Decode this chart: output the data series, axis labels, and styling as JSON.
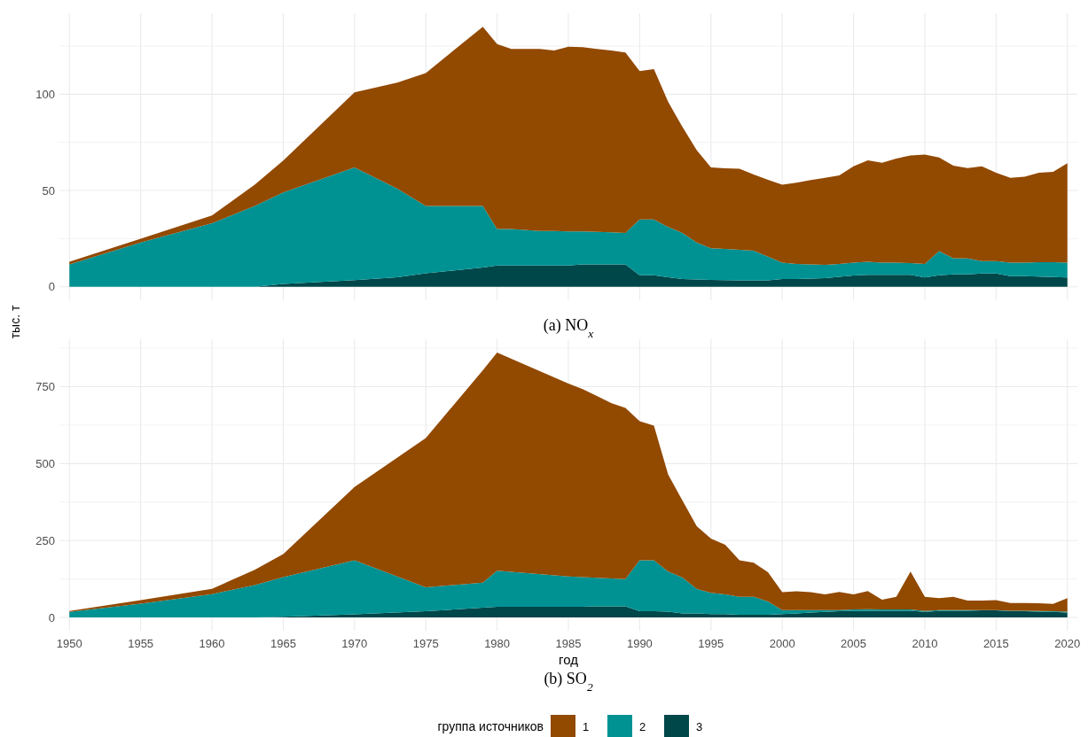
{
  "chart_data": [
    {
      "type": "area",
      "title": "(a) NO$_{x}$",
      "ylabel": "тыс. т",
      "stacked": true,
      "grid": true,
      "tick_labels": "y",
      "x": [
        1950,
        1955,
        1960,
        1963,
        1965,
        1970,
        1973,
        1975,
        1979,
        1980,
        1981,
        1983,
        1984,
        1985,
        1986,
        1987,
        1988,
        1989,
        1990,
        1991,
        1992,
        1993,
        1994,
        1995,
        1996,
        1997,
        1998,
        1999,
        2000,
        2001,
        2002,
        2003,
        2004,
        2005,
        2006,
        2007,
        2008,
        2009,
        2010,
        2011,
        2012,
        2013,
        2014,
        2015,
        2016,
        2017,
        2018,
        2019,
        2020
      ],
      "xlim": [
        1949.3,
        2020.7
      ],
      "xticks": [
        1950,
        1955,
        1960,
        1965,
        1970,
        1975,
        1980,
        1985,
        1990,
        1995,
        2000,
        2005,
        2010,
        2015,
        2020
      ],
      "ylim": [
        -7,
        142
      ],
      "yticks": [
        0,
        {
          "value": 25,
          "label": null
        },
        50,
        {
          "value": 75,
          "label": null
        },
        100,
        {
          "value": 125,
          "label": null
        }
      ],
      "series": [
        {
          "color": "#00474a",
          "values": [
            0,
            0,
            0,
            0,
            1.5,
            3.5,
            5,
            7,
            10,
            11,
            11,
            11,
            11,
            11,
            11.6,
            11.6,
            11.6,
            11.6,
            6,
            6,
            5,
            4,
            3.8,
            3.6,
            3.5,
            3.4,
            3.4,
            3.4,
            4,
            4,
            4.3,
            4.5,
            5.2,
            5.9,
            6.2,
            6.2,
            6.2,
            6.2,
            4.8,
            6,
            6.4,
            6.4,
            6.9,
            6.9,
            5.5,
            5.5,
            5.3,
            5.1,
            4.8
          ]
        },
        {
          "color": "#009292",
          "values": [
            11.6,
            23,
            33,
            42,
            47.5,
            58.5,
            46,
            35,
            32,
            19,
            19,
            18,
            18,
            17.7,
            17.1,
            16.9,
            16.7,
            16.4,
            29,
            29,
            26,
            24,
            19.2,
            16.4,
            16.2,
            15.8,
            15.3,
            12.2,
            8.5,
            7.8,
            7.3,
            6.9,
            6.6,
            6.6,
            6.8,
            6.4,
            6.3,
            6.1,
            7,
            12.5,
            8.5,
            8.3,
            6.4,
            6.4,
            7.1,
            7.1,
            7.5,
            7.7,
            7.7
          ]
        },
        {
          "color": "#924900",
          "values": [
            1.4,
            2,
            4,
            11,
            16.6,
            39,
            55,
            69,
            93,
            96,
            93.5,
            94.5,
            93.7,
            95.9,
            95.7,
            95,
            94.4,
            93.6,
            77,
            78,
            65,
            55,
            48,
            42,
            41.8,
            42.1,
            39.6,
            39.9,
            40.5,
            42.2,
            43.8,
            45.2,
            46,
            50.1,
            52.7,
            51.8,
            54.1,
            55.9,
            56.9,
            48.6,
            48,
            46.9,
            49.2,
            45.9,
            44,
            44.5,
            46.4,
            46.9,
            51.7
          ]
        }
      ]
    },
    {
      "type": "area",
      "title": "(b) SO$_{2}$",
      "xlabel": "год",
      "stacked": true,
      "grid": true,
      "legend": "bottom",
      "legend_title": "группа источников",
      "x": [
        1950,
        1955,
        1960,
        1963,
        1965,
        1970,
        1975,
        1979,
        1980,
        1985,
        1986,
        1987,
        1988,
        1989,
        1990,
        1991,
        1992,
        1993,
        1994,
        1995,
        1996,
        1997,
        1998,
        1999,
        2000,
        2001,
        2002,
        2003,
        2004,
        2005,
        2006,
        2007,
        2008,
        2009,
        2010,
        2011,
        2012,
        2013,
        2014,
        2015,
        2016,
        2017,
        2018,
        2019,
        2020
      ],
      "xlim": [
        1949.3,
        2020.7
      ],
      "xticks": [
        1950,
        1955,
        1960,
        1965,
        1970,
        1975,
        1980,
        1985,
        1990,
        1995,
        2000,
        2005,
        2010,
        2015,
        2020
      ],
      "ylim": [
        -43,
        904
      ],
      "yticks": [
        0,
        {
          "value": 125,
          "label": null
        },
        250,
        {
          "value": 375,
          "label": null
        },
        500,
        {
          "value": 625,
          "label": null
        },
        750,
        {
          "value": 875,
          "label": null
        }
      ],
      "series": [
        {
          "name": "3",
          "color": "#00474a",
          "values": [
            0,
            0,
            0,
            0,
            2,
            10,
            20,
            32,
            35,
            35,
            35,
            36,
            36,
            36,
            20,
            20,
            19,
            13,
            13,
            11,
            11,
            9,
            9,
            9,
            11,
            13,
            16,
            18,
            20,
            21,
            22,
            22,
            22,
            22,
            18,
            21,
            21,
            22,
            23,
            23,
            20,
            20,
            19,
            18,
            16
          ]
        },
        {
          "name": "2",
          "color": "#009292",
          "values": [
            18,
            45,
            76,
            105,
            129,
            176,
            78,
            81,
            117,
            98,
            96,
            93,
            91,
            89,
            166,
            166,
            130,
            117,
            80,
            69,
            64,
            58,
            58,
            43,
            13,
            11,
            8,
            6,
            4,
            5,
            5,
            4,
            4,
            4,
            3,
            3,
            3,
            2,
            1,
            1,
            2,
            2,
            2,
            2,
            3
          ]
        },
        {
          "name": "1",
          "color": "#924900",
          "values": [
            3,
            11,
            17,
            50,
            75,
            238,
            485,
            690,
            709,
            627,
            611,
            591,
            570,
            556,
            452,
            437,
            315,
            250,
            204,
            176,
            161,
            119,
            111,
            95,
            58,
            61,
            58,
            51,
            59,
            49,
            59,
            32,
            41,
            123,
            46,
            39,
            43,
            31,
            31,
            32,
            25,
            25,
            25,
            24,
            44
          ]
        }
      ]
    }
  ]
}
